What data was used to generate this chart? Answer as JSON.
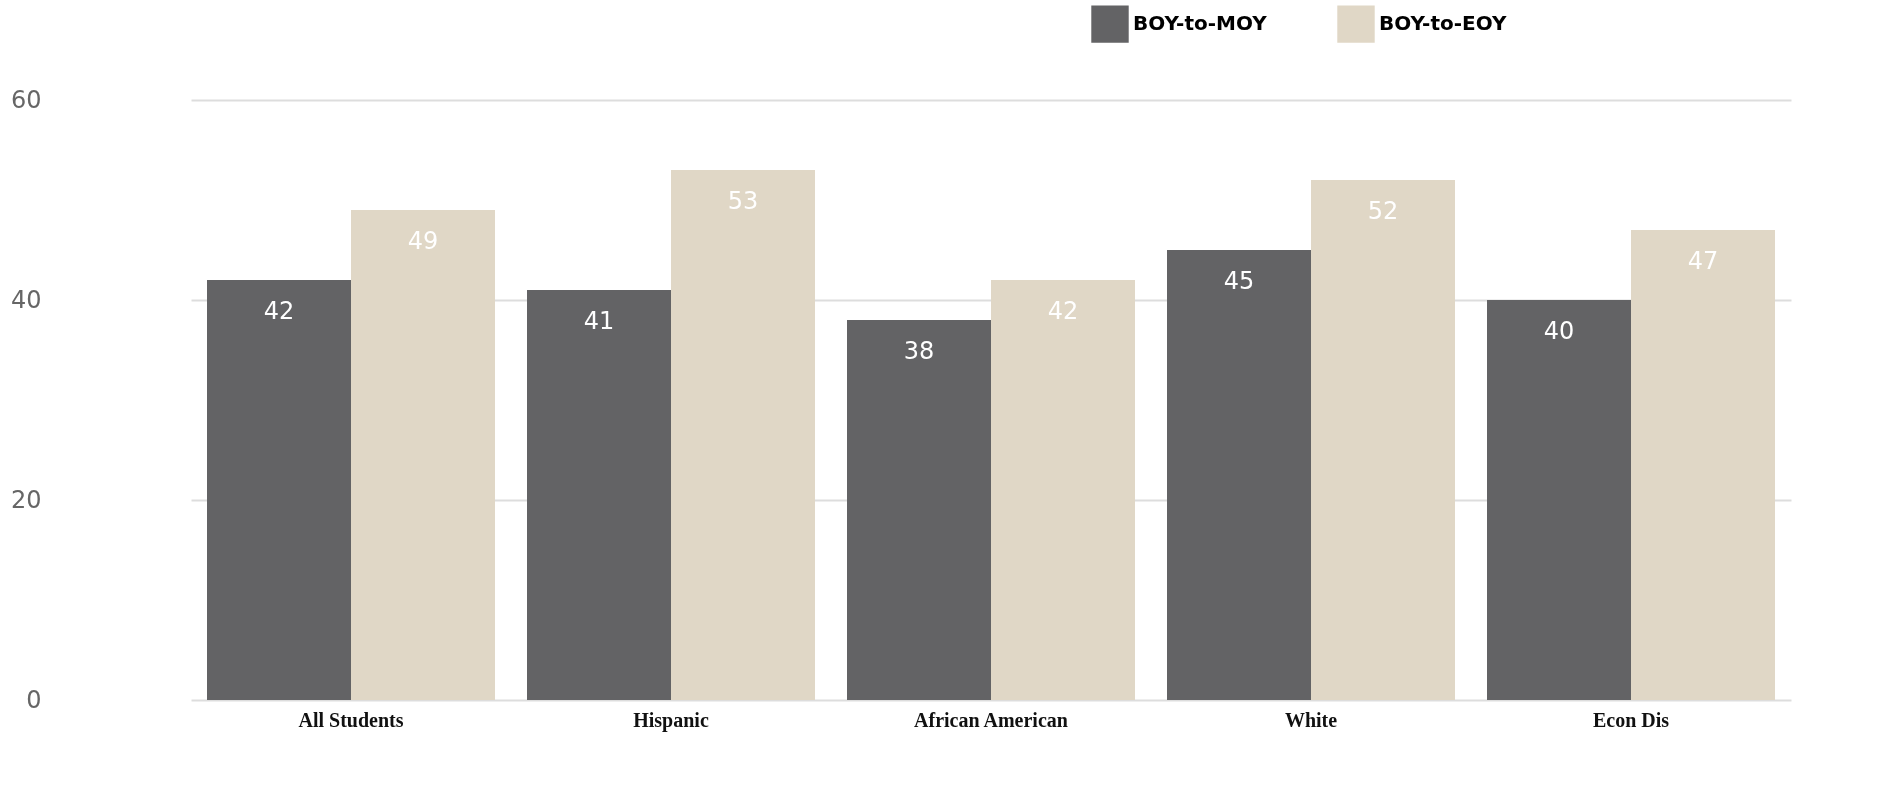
{
  "chart_data": {
    "type": "bar",
    "categories": [
      "All Students",
      "Hispanic",
      "African American",
      "White",
      "Econ Dis"
    ],
    "series": [
      {
        "name": "BOY-to-MOY",
        "color": "#636365",
        "values": [
          42,
          41,
          38,
          45,
          40
        ]
      },
      {
        "name": "BOY-to-EOY",
        "color": "#e0d7c6",
        "values": [
          49,
          53,
          42,
          52,
          47
        ]
      }
    ],
    "ylim": [
      0,
      60
    ],
    "yticks": [
      0,
      20,
      40,
      60
    ],
    "grid": "y",
    "legend": "top right",
    "data_labels": true
  }
}
